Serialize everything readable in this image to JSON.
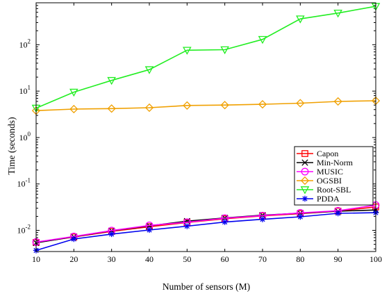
{
  "chart_data": {
    "type": "line",
    "xlabel": "Number of sensors (M)",
    "ylabel": "Time (seconds)",
    "yscale": "log",
    "xlim": [
      10,
      100
    ],
    "ylim": [
      0.0035,
      800
    ],
    "x": [
      10,
      20,
      30,
      40,
      50,
      60,
      70,
      80,
      90,
      100
    ],
    "xticks": [
      "10",
      "20",
      "30",
      "40",
      "50",
      "60",
      "70",
      "80",
      "90",
      "100"
    ],
    "yticks": [
      {
        "value": 0.01,
        "mant": "10",
        "exp": "-2"
      },
      {
        "value": 0.1,
        "mant": "10",
        "exp": "-1"
      },
      {
        "value": 1,
        "mant": "10",
        "exp": "0"
      },
      {
        "value": 10,
        "mant": "10",
        "exp": "1"
      },
      {
        "value": 100,
        "mant": "10",
        "exp": "2"
      }
    ],
    "grid": false,
    "legend_position": "right",
    "series": [
      {
        "name": "Capon",
        "color": "#ff0000",
        "marker": "square",
        "values": [
          0.0055,
          0.0072,
          0.0095,
          0.012,
          0.0148,
          0.0178,
          0.0205,
          0.023,
          0.026,
          0.032
        ]
      },
      {
        "name": "Min-Norm",
        "color": "#000000",
        "marker": "x",
        "values": [
          0.0054,
          0.0073,
          0.0098,
          0.0125,
          0.0158,
          0.0185,
          0.0212,
          0.0235,
          0.0258,
          0.0275
        ]
      },
      {
        "name": "MUSIC",
        "color": "#ff00ff",
        "marker": "circle",
        "values": [
          0.0056,
          0.0074,
          0.0099,
          0.0128,
          0.015,
          0.0183,
          0.0208,
          0.0238,
          0.0265,
          0.035
        ]
      },
      {
        "name": "OGSBI",
        "color": "#f0a000",
        "marker": "diamond",
        "values": [
          3.8,
          4.1,
          4.2,
          4.4,
          4.9,
          5.0,
          5.2,
          5.5,
          6.0,
          6.2
        ]
      },
      {
        "name": "Root-SBL",
        "color": "#22ee22",
        "marker": "triangle-down",
        "values": [
          4.3,
          9.5,
          17,
          29,
          76,
          78,
          130,
          360,
          480,
          670
        ]
      },
      {
        "name": "PDDA",
        "color": "#0000ee",
        "marker": "asterisk",
        "values": [
          0.0037,
          0.0065,
          0.0083,
          0.0102,
          0.0123,
          0.0151,
          0.0173,
          0.0196,
          0.0233,
          0.024
        ]
      }
    ]
  }
}
